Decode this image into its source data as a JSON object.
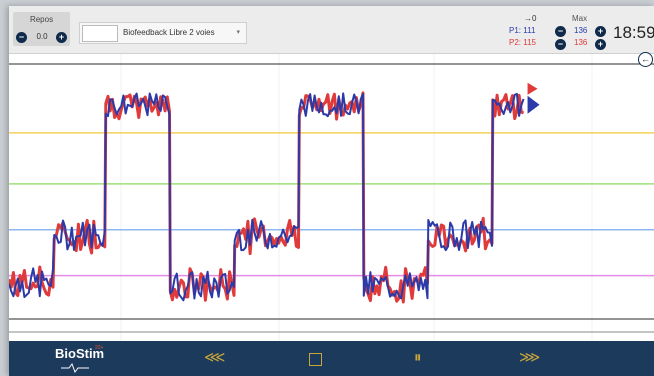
{
  "header": {
    "repos_label": "Repos",
    "repos_value": "0.0",
    "mode_label": "Biofeedback Libre 2 voies",
    "arrow_label": "→0",
    "max_label": "Max",
    "p1_label": "P1: 111",
    "p2_label": "P2: 115",
    "p1_max": "136",
    "p2_max": "136",
    "clock": "18:59"
  },
  "footer": {
    "logo_text": "BioStim",
    "logo_sup": "22+",
    "rewind_icon": "⋘",
    "pause_icon": "⏸",
    "forward_icon": "⋙"
  },
  "colors": {
    "p1": "#2b3aa8",
    "p2": "#e03a3a",
    "threshold_yellow": "#f2d25a",
    "threshold_green": "#9be07a",
    "threshold_blue": "#8db7f0",
    "threshold_magenta": "#e48ce8",
    "bar_bg": "#1c3a5c",
    "accent": "#c9a63a"
  },
  "chart_data": {
    "type": "line",
    "segments": [
      {
        "from": 0,
        "to": 0.07,
        "level": 0.14
      },
      {
        "from": 0.07,
        "to": 0.15,
        "level": 0.33
      },
      {
        "from": 0.15,
        "to": 0.25,
        "level": 0.84
      },
      {
        "from": 0.25,
        "to": 0.35,
        "level": 0.13
      },
      {
        "from": 0.35,
        "to": 0.45,
        "level": 0.33
      },
      {
        "from": 0.45,
        "to": 0.55,
        "level": 0.84
      },
      {
        "from": 0.55,
        "to": 0.65,
        "level": 0.13
      },
      {
        "from": 0.65,
        "to": 0.75,
        "level": 0.33
      },
      {
        "from": 0.75,
        "to": 0.8,
        "level": 0.84
      }
    ],
    "thresholds": [
      {
        "name": "yellow",
        "level": 0.73
      },
      {
        "name": "green",
        "level": 0.53
      },
      {
        "name": "blue",
        "level": 0.35
      },
      {
        "name": "magenta",
        "level": 0.17
      }
    ]
  }
}
